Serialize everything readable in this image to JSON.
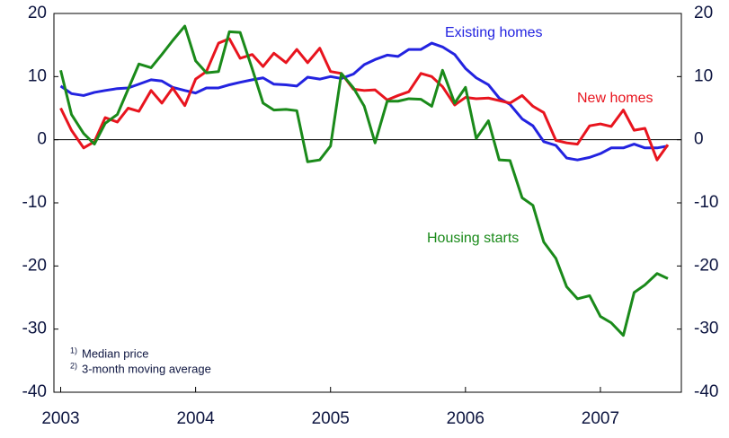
{
  "chart_data": {
    "type": "line",
    "x": [
      2003.0,
      2003.08,
      2003.17,
      2003.25,
      2003.33,
      2003.42,
      2003.5,
      2003.58,
      2003.67,
      2003.75,
      2003.83,
      2003.92,
      2004.0,
      2004.08,
      2004.17,
      2004.25,
      2004.33,
      2004.42,
      2004.5,
      2004.58,
      2004.67,
      2004.75,
      2004.83,
      2004.92,
      2005.0,
      2005.08,
      2005.17,
      2005.25,
      2005.33,
      2005.42,
      2005.5,
      2005.58,
      2005.67,
      2005.75,
      2005.83,
      2005.92,
      2006.0,
      2006.08,
      2006.17,
      2006.25,
      2006.33,
      2006.42,
      2006.5,
      2006.58,
      2006.67,
      2006.75,
      2006.83,
      2006.92,
      2007.0,
      2007.08,
      2007.17,
      2007.25,
      2007.33,
      2007.42,
      2007.5
    ],
    "series": [
      {
        "name": "Existing homes",
        "color": "#2323e0",
        "values": [
          8.5,
          7.3,
          7.0,
          7.5,
          7.8,
          8.1,
          8.2,
          8.8,
          9.5,
          9.3,
          8.3,
          7.8,
          7.4,
          8.2,
          8.2,
          8.7,
          9.1,
          9.5,
          9.8,
          8.8,
          8.7,
          8.5,
          9.9,
          9.6,
          10.0,
          9.7,
          10.4,
          11.9,
          12.7,
          13.4,
          13.2,
          14.3,
          14.3,
          15.3,
          14.7,
          13.5,
          11.3,
          9.8,
          8.7,
          6.6,
          5.6,
          3.3,
          2.2,
          -0.3,
          -0.9,
          -2.9,
          -3.2,
          -2.8,
          -2.2,
          -1.3,
          -1.3,
          -0.7,
          -1.3,
          -1.3,
          -1.0
        ]
      },
      {
        "name": "New homes",
        "color": "#e8141e",
        "values": [
          5.0,
          1.5,
          -1.3,
          -0.3,
          3.5,
          2.8,
          5.0,
          4.5,
          7.8,
          5.8,
          8.2,
          5.4,
          9.6,
          10.8,
          15.3,
          16.0,
          12.9,
          13.5,
          11.6,
          13.7,
          12.2,
          14.3,
          12.2,
          14.5,
          10.8,
          10.5,
          8.0,
          7.8,
          7.9,
          6.3,
          7.0,
          7.6,
          10.5,
          10.0,
          8.4,
          5.5,
          6.7,
          6.5,
          6.6,
          6.2,
          5.8,
          7.0,
          5.3,
          4.3,
          -0.1,
          -0.5,
          -0.7,
          2.2,
          2.5,
          2.1,
          4.7,
          1.5,
          1.8,
          -3.2,
          -0.8
        ]
      },
      {
        "name": "Housing starts",
        "color": "#1a8a1a",
        "values": [
          11.0,
          4.0,
          1.0,
          -0.7,
          2.6,
          4.0,
          8.0,
          12.0,
          11.4,
          13.5,
          15.7,
          18.0,
          12.5,
          10.6,
          10.8,
          17.1,
          17.0,
          11.2,
          5.8,
          4.7,
          4.8,
          4.6,
          -3.5,
          -3.2,
          -1.0,
          10.5,
          8.2,
          5.3,
          -0.5,
          6.1,
          6.1,
          6.5,
          6.4,
          5.3,
          11.0,
          5.8,
          8.3,
          0.2,
          3.0,
          -3.2,
          -3.3,
          -9.2,
          -10.4,
          -16.2,
          -18.8,
          -23.3,
          -25.2,
          -24.7,
          -28.0,
          -29.0,
          -31.0,
          -24.2,
          -23.0,
          -21.2,
          -22.0
        ]
      }
    ],
    "xlim": [
      2002.95,
      2007.6
    ],
    "xticks": [
      2003,
      2004,
      2005,
      2006,
      2007
    ],
    "ylim": [
      -40,
      20
    ],
    "yticks": [
      -40,
      -30,
      -20,
      -10,
      0,
      10,
      20
    ],
    "zero_line": true,
    "notes": [
      {
        "marker": "1)",
        "text": "Median price"
      },
      {
        "marker": "2)",
        "text": "3-month moving average"
      }
    ]
  }
}
